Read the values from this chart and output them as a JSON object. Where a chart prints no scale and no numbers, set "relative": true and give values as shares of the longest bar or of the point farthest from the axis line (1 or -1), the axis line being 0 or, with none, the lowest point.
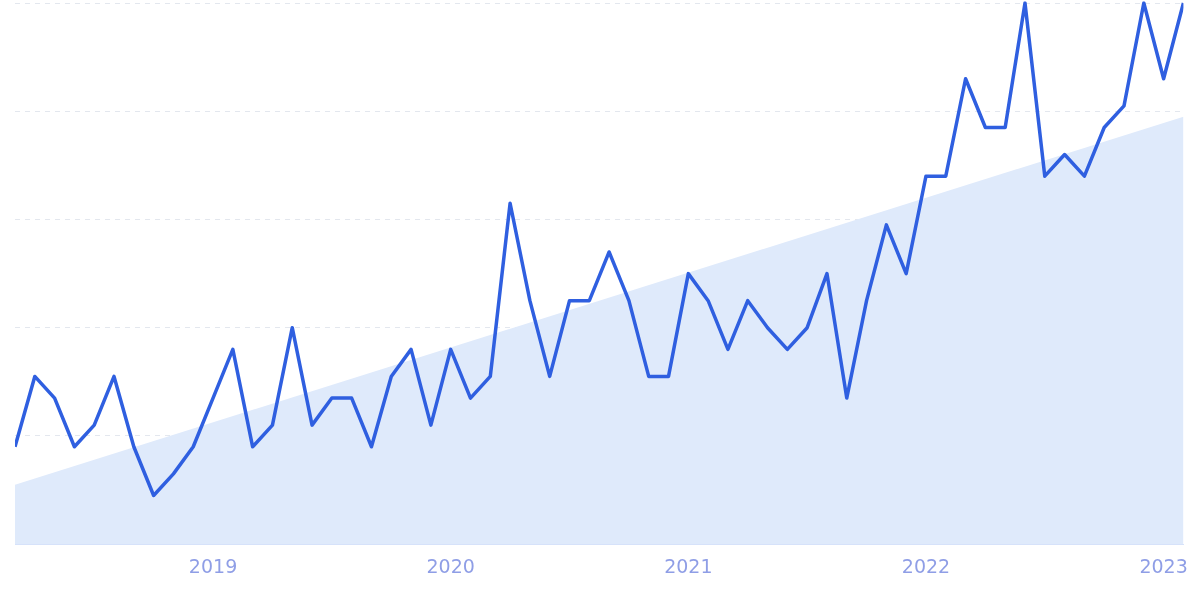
{
  "chart_data": {
    "type": "line",
    "relative": true,
    "grid": "y",
    "marker": "none",
    "line_style": "solid",
    "x": [
      "2018-03",
      "2018-04",
      "2018-05",
      "2018-06",
      "2018-07",
      "2018-08",
      "2018-09",
      "2018-10",
      "2018-11",
      "2018-12",
      "2019-01",
      "2019-02",
      "2019-03",
      "2019-04",
      "2019-05",
      "2019-06",
      "2019-07",
      "2019-08",
      "2019-09",
      "2019-10",
      "2019-11",
      "2019-12",
      "2020-01",
      "2020-02",
      "2020-03",
      "2020-04",
      "2020-05",
      "2020-06",
      "2020-07",
      "2020-08",
      "2020-09",
      "2020-10",
      "2020-11",
      "2020-12",
      "2021-01",
      "2021-02",
      "2021-03",
      "2021-04",
      "2021-05",
      "2021-06",
      "2021-07",
      "2021-08",
      "2021-09",
      "2021-10",
      "2021-11",
      "2021-12",
      "2022-01",
      "2022-02",
      "2022-03",
      "2022-04",
      "2022-05",
      "2022-06",
      "2022-07",
      "2022-08",
      "2022-09",
      "2022-10",
      "2022-11",
      "2022-12",
      "2023-01",
      "2023-02"
    ],
    "xlim": [
      "2018-03",
      "2023-02"
    ],
    "xticks": [
      "2019",
      "2020",
      "2021",
      "2022",
      "2023"
    ],
    "series": [
      {
        "type": "area",
        "color": "#dfeafb",
        "x": [
          "2018-03",
          "2023-02"
        ],
        "values": [
          0.11,
          0.79
        ]
      },
      {
        "color": "#2f5fe0",
        "values": [
          0.18,
          0.31,
          0.27,
          0.18,
          0.22,
          0.31,
          0.18,
          0.09,
          0.13,
          0.18,
          0.27,
          0.36,
          0.18,
          0.22,
          0.4,
          0.22,
          0.27,
          0.27,
          0.18,
          0.31,
          0.36,
          0.22,
          0.36,
          0.27,
          0.31,
          0.63,
          0.45,
          0.31,
          0.45,
          0.45,
          0.54,
          0.45,
          0.31,
          0.31,
          0.5,
          0.45,
          0.36,
          0.45,
          0.4,
          0.36,
          0.4,
          0.5,
          0.27,
          0.45,
          0.59,
          0.5,
          0.68,
          0.68,
          0.86,
          0.77,
          0.77,
          1,
          0.68,
          0.72,
          0.68,
          0.77,
          0.81,
          1,
          0.86,
          1
        ]
      }
    ]
  }
}
